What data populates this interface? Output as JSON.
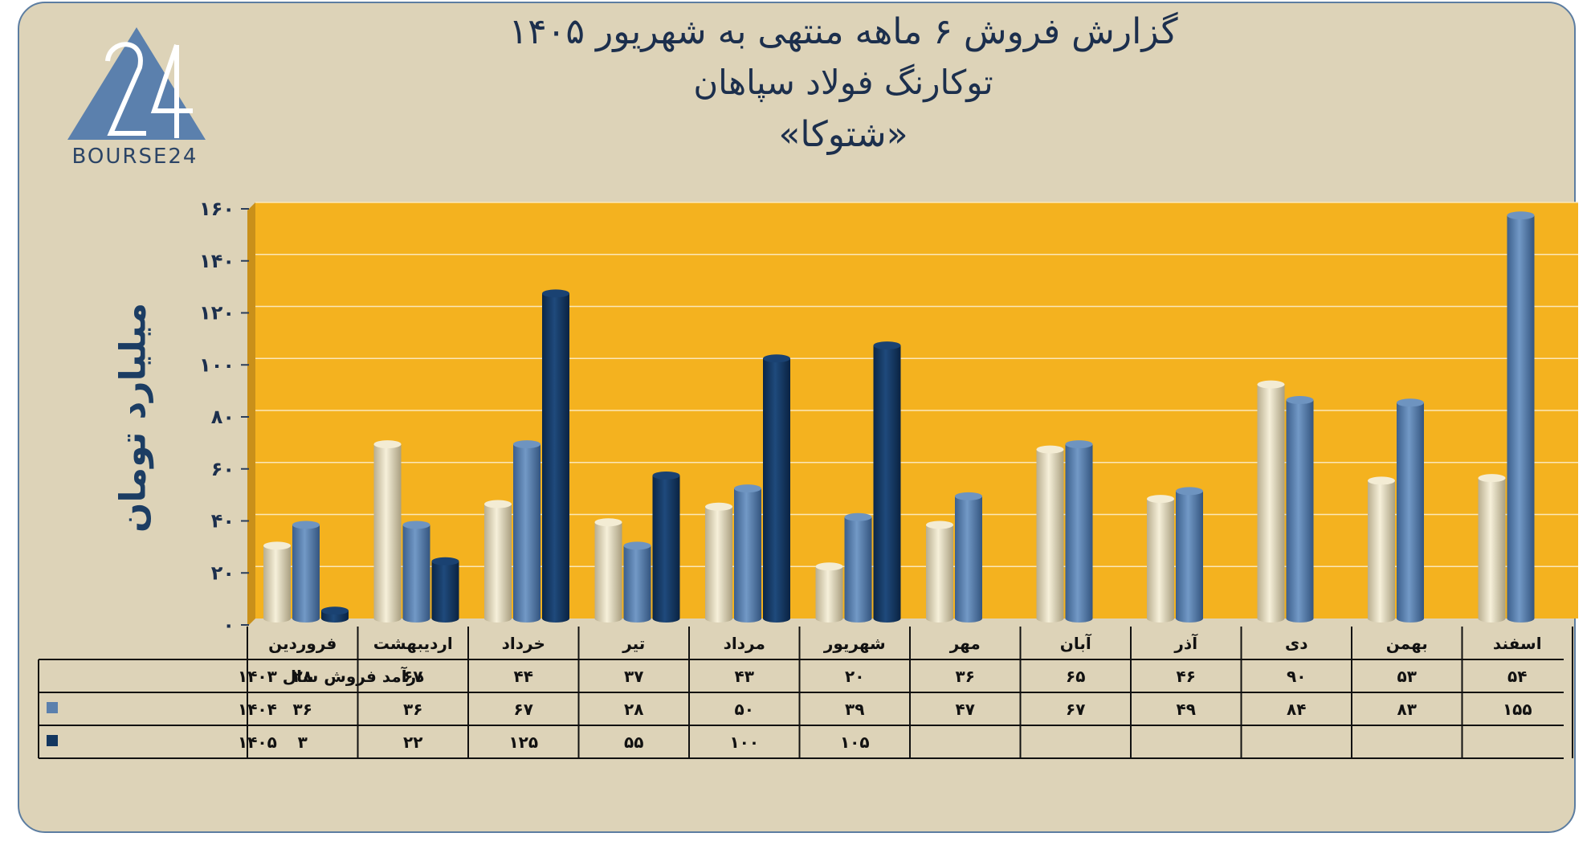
{
  "header": {
    "title_line1": "گزارش  فروش ۶ ماهه منتهی به شهریور ۱۴۰۵",
    "title_line2": "توکارنگ فولاد سپاهان",
    "title_line3": "«شتوکا»"
  },
  "logo": {
    "icon": "bourse24-triangle-logo",
    "text": "BOURSE24"
  },
  "colors": {
    "background": "#ddd3b8",
    "plot": "#f4b21f",
    "series_1403": "#e8dfc2",
    "series_1404": "#5b80ad",
    "series_1405": "#13365f",
    "text": "#1c2f4d"
  },
  "chart_data": {
    "type": "bar",
    "title": "گزارش  فروش ۶ ماهه منتهی به شهریور ۱۴۰۵",
    "ylabel": "میلیارد تومان",
    "ylim": [
      0,
      160
    ],
    "yticks": [
      0,
      20,
      40,
      60,
      80,
      100,
      120,
      140,
      160
    ],
    "ytick_labels": [
      "۰",
      "۲۰",
      "۴۰",
      "۶۰",
      "۸۰",
      "۱۰۰",
      "۱۲۰",
      "۱۴۰",
      "۱۶۰"
    ],
    "grid": true,
    "categories": [
      "فروردین",
      "اردیبهشت",
      "خرداد",
      "تیر",
      "مرداد",
      "شهریور",
      "مهر",
      "آبان",
      "آذر",
      "دی",
      "بهمن",
      "اسفند"
    ],
    "series": [
      {
        "name": "درآمد فروش سال ۱۴۰۳",
        "values": [
          28,
          67,
          44,
          37,
          43,
          20,
          36,
          65,
          46,
          90,
          53,
          54
        ],
        "labels": [
          "۲۸",
          "۶۷",
          "۴۴",
          "۳۷",
          "۴۳",
          "۲۰",
          "۳۶",
          "۶۵",
          "۴۶",
          "۹۰",
          "۵۳",
          "۵۴"
        ]
      },
      {
        "name": "۱۴۰۴",
        "values": [
          36,
          36,
          67,
          28,
          50,
          39,
          47,
          67,
          49,
          84,
          83,
          155
        ],
        "labels": [
          "۳۶",
          "۳۶",
          "۶۷",
          "۲۸",
          "۵۰",
          "۳۹",
          "۴۷",
          "۶۷",
          "۴۹",
          "۸۴",
          "۸۳",
          "۱۵۵"
        ]
      },
      {
        "name": "۱۴۰۵",
        "values": [
          3,
          22,
          125,
          55,
          100,
          105,
          null,
          null,
          null,
          null,
          null,
          null
        ],
        "labels": [
          "۳",
          "۲۲",
          "۱۲۵",
          "۵۵",
          "۱۰۰",
          "۱۰۵",
          "",
          "",
          "",
          "",
          "",
          ""
        ]
      }
    ]
  }
}
